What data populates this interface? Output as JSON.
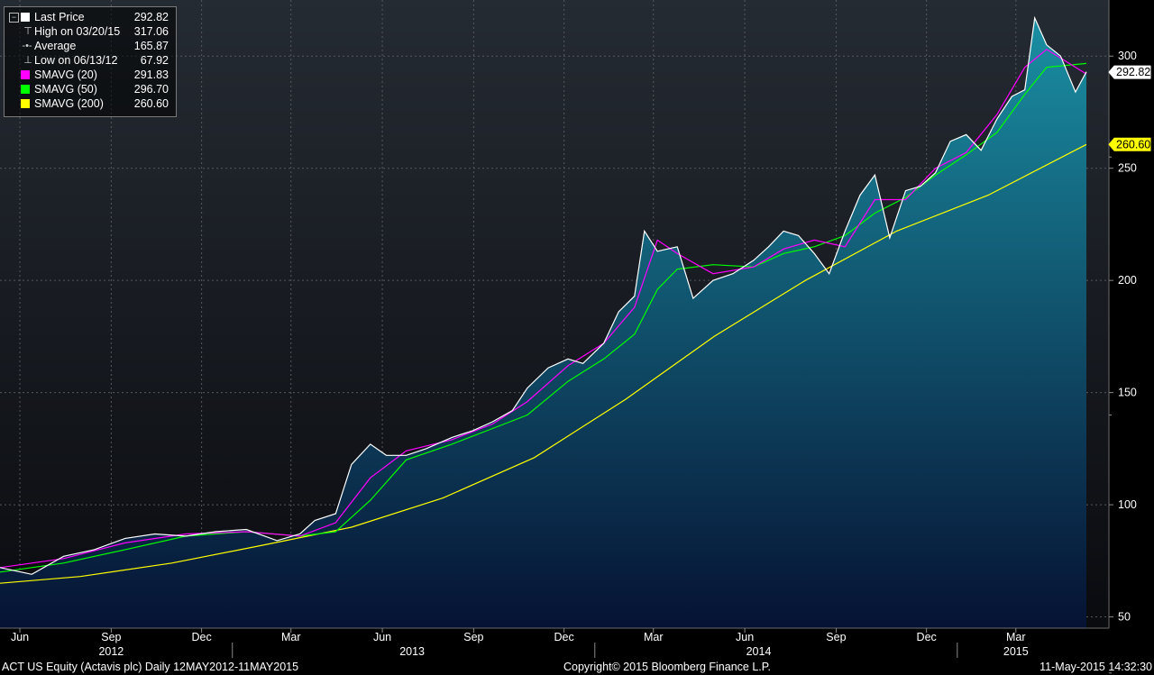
{
  "legend": [
    {
      "symbol": "box",
      "color": "#ffffff",
      "label": "Last Price",
      "value": "292.82"
    },
    {
      "symbol": "high-marker",
      "label": "High on 03/20/15",
      "value": "317.06"
    },
    {
      "symbol": "average-marker",
      "label": "Average",
      "value": "165.87"
    },
    {
      "symbol": "low-marker",
      "label": "Low on 06/13/12",
      "value": "67.92"
    },
    {
      "symbol": "box",
      "color": "#ff00ff",
      "label": "SMAVG (20)",
      "value": "291.83"
    },
    {
      "symbol": "box",
      "color": "#00ff00",
      "label": "SMAVG (50)",
      "value": "296.70"
    },
    {
      "symbol": "box",
      "color": "#ffff00",
      "label": "SMAVG (200)",
      "value": "260.60"
    }
  ],
  "footer": {
    "left": "ACT US Equity (Actavis plc)  Daily 12MAY2012-11MAY2015",
    "center": "Copyright© 2015 Bloomberg Finance L.P.",
    "right": "11-May-2015 14:32:30"
  },
  "tags": [
    {
      "value": "292.82",
      "fill": "#ffffff",
      "text": "#000000",
      "border": "#ffffff"
    },
    {
      "value": "260.60",
      "fill": "#ffff00",
      "text": "#000000",
      "border": "#ffff00"
    }
  ],
  "chart_data": {
    "type": "line",
    "x_type": "date",
    "y_ticks": [
      "50",
      "100",
      "150",
      "200",
      "250",
      "300"
    ],
    "ylim": [
      45,
      325
    ],
    "xlim": [
      "2012-05-12",
      "2015-05-11"
    ],
    "month_ticks": [
      {
        "label": "Jun",
        "date": "2012-06-01"
      },
      {
        "label": "Sep",
        "date": "2012-09-01"
      },
      {
        "label": "Dec",
        "date": "2012-12-01"
      },
      {
        "label": "Mar",
        "date": "2013-03-01"
      },
      {
        "label": "Jun",
        "date": "2013-06-01"
      },
      {
        "label": "Sep",
        "date": "2013-09-01"
      },
      {
        "label": "Dec",
        "date": "2013-12-01"
      },
      {
        "label": "Mar",
        "date": "2014-03-01"
      },
      {
        "label": "Jun",
        "date": "2014-06-01"
      },
      {
        "label": "Sep",
        "date": "2014-09-01"
      },
      {
        "label": "Dec",
        "date": "2014-12-01"
      },
      {
        "label": "Mar",
        "date": "2015-03-01"
      }
    ],
    "year_labels": [
      {
        "label": "2012",
        "date": "2012-09-01"
      },
      {
        "label": "2013",
        "date": "2013-07-01"
      },
      {
        "label": "2014",
        "date": "2014-06-15"
      },
      {
        "label": "2015",
        "date": "2015-03-01"
      }
    ],
    "grid": true,
    "colors": {
      "price": "#ffffff",
      "sma20": "#ff00ff",
      "sma50": "#00ff00",
      "sma200": "#ffff00",
      "fill_top": "#1a8fa3",
      "fill_bottom": "#061233"
    },
    "series": [
      {
        "name": "Last Price",
        "key": "price",
        "x": [
          "2012-05-12",
          "2012-06-13",
          "2012-07-15",
          "2012-08-15",
          "2012-09-15",
          "2012-10-15",
          "2012-11-15",
          "2012-12-15",
          "2013-01-15",
          "2013-02-15",
          "2013-03-10",
          "2013-03-25",
          "2013-04-15",
          "2013-05-01",
          "2013-05-20",
          "2013-06-05",
          "2013-06-25",
          "2013-07-15",
          "2013-08-10",
          "2013-08-31",
          "2013-09-20",
          "2013-10-10",
          "2013-10-25",
          "2013-11-15",
          "2013-12-05",
          "2013-12-20",
          "2014-01-10",
          "2014-01-25",
          "2014-02-10",
          "2014-02-20",
          "2014-03-05",
          "2014-03-25",
          "2014-04-10",
          "2014-04-30",
          "2014-05-20",
          "2014-06-10",
          "2014-06-25",
          "2014-07-10",
          "2014-07-25",
          "2014-08-10",
          "2014-08-25",
          "2014-09-10",
          "2014-09-25",
          "2014-10-10",
          "2014-10-25",
          "2014-11-10",
          "2014-11-25",
          "2014-12-10",
          "2014-12-25",
          "2015-01-10",
          "2015-01-25",
          "2015-02-10",
          "2015-02-25",
          "2015-03-10",
          "2015-03-20",
          "2015-04-01",
          "2015-04-15",
          "2015-04-30",
          "2015-05-11"
        ],
        "y": [
          72,
          69,
          77,
          80,
          85,
          87,
          86,
          88,
          89,
          84,
          87,
          93,
          96,
          118,
          127,
          122,
          122,
          125,
          130,
          133,
          137,
          142,
          152,
          161,
          165,
          163,
          172,
          186,
          193,
          222,
          213,
          215,
          192,
          200,
          203,
          209,
          215,
          222,
          220,
          212,
          203,
          222,
          238,
          247,
          219,
          240,
          242,
          248,
          262,
          265,
          258,
          272,
          282,
          285,
          317,
          305,
          300,
          284,
          293
        ]
      },
      {
        "name": "SMAVG (20)",
        "key": "sma20",
        "x": [
          "2012-05-12",
          "2012-07-15",
          "2012-09-15",
          "2012-11-15",
          "2013-01-15",
          "2013-03-10",
          "2013-04-15",
          "2013-05-20",
          "2013-06-25",
          "2013-08-10",
          "2013-09-20",
          "2013-10-25",
          "2013-12-05",
          "2014-01-10",
          "2014-02-10",
          "2014-03-05",
          "2014-03-25",
          "2014-04-30",
          "2014-06-10",
          "2014-07-10",
          "2014-08-10",
          "2014-09-10",
          "2014-10-10",
          "2014-11-10",
          "2014-12-10",
          "2015-01-10",
          "2015-02-10",
          "2015-03-10",
          "2015-04-01",
          "2015-05-11"
        ],
        "y": [
          72,
          76,
          83,
          87,
          88,
          86,
          92,
          112,
          124,
          129,
          136,
          146,
          162,
          172,
          188,
          218,
          212,
          203,
          206,
          214,
          218,
          215,
          236,
          236,
          250,
          257,
          274,
          295,
          303,
          292
        ]
      },
      {
        "name": "SMAVG (50)",
        "key": "sma50",
        "x": [
          "2012-05-12",
          "2012-07-15",
          "2012-09-15",
          "2012-11-15",
          "2013-01-15",
          "2013-03-10",
          "2013-04-15",
          "2013-05-20",
          "2013-06-25",
          "2013-08-10",
          "2013-09-20",
          "2013-10-25",
          "2013-12-05",
          "2014-01-10",
          "2014-02-10",
          "2014-03-05",
          "2014-03-25",
          "2014-04-30",
          "2014-06-10",
          "2014-07-10",
          "2014-08-10",
          "2014-09-10",
          "2014-10-10",
          "2014-11-10",
          "2014-12-10",
          "2015-01-10",
          "2015-02-10",
          "2015-03-10",
          "2015-04-01",
          "2015-05-11"
        ],
        "y": [
          70,
          74,
          80,
          86,
          88,
          86,
          88,
          102,
          120,
          127,
          134,
          140,
          155,
          165,
          176,
          196,
          205,
          207,
          206,
          212,
          215,
          220,
          230,
          237,
          247,
          256,
          266,
          283,
          295,
          296.7
        ]
      },
      {
        "name": "SMAVG (200)",
        "key": "sma200",
        "x": [
          "2012-05-12",
          "2012-08-01",
          "2012-11-01",
          "2013-02-01",
          "2013-05-01",
          "2013-08-01",
          "2013-11-01",
          "2014-02-01",
          "2014-05-01",
          "2014-08-01",
          "2014-11-01",
          "2015-02-01",
          "2015-05-11"
        ],
        "y": [
          65,
          68,
          74,
          82,
          90,
          103,
          121,
          147,
          175,
          200,
          222,
          238,
          260.6
        ]
      }
    ]
  }
}
